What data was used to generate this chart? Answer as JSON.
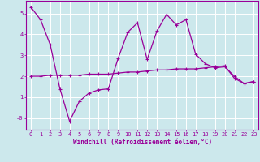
{
  "title": "",
  "xlabel": "Windchill (Refroidissement éolien,°C)",
  "background_color": "#cce8ec",
  "grid_color": "#ffffff",
  "line_color": "#990099",
  "x_line1": [
    0,
    1,
    2,
    3,
    4,
    5,
    6,
    7,
    8,
    9,
    10,
    11,
    12,
    13,
    14,
    15,
    16,
    17,
    18,
    19,
    20,
    21,
    22,
    23
  ],
  "y_line1": [
    5.3,
    4.7,
    3.5,
    1.4,
    -0.15,
    0.8,
    1.2,
    1.35,
    1.4,
    2.85,
    4.1,
    4.55,
    2.8,
    4.15,
    4.95,
    4.45,
    4.7,
    3.05,
    2.6,
    2.4,
    2.45,
    2.0,
    1.65,
    1.75
  ],
  "x_line2": [
    0,
    1,
    2,
    3,
    4,
    5,
    6,
    7,
    8,
    9,
    10,
    11,
    12,
    13,
    14,
    15,
    16,
    17,
    18,
    19,
    20,
    21,
    22,
    23
  ],
  "y_line2": [
    2.0,
    2.0,
    2.05,
    2.05,
    2.05,
    2.05,
    2.1,
    2.1,
    2.1,
    2.15,
    2.2,
    2.2,
    2.25,
    2.3,
    2.3,
    2.35,
    2.35,
    2.35,
    2.4,
    2.45,
    2.5,
    1.9,
    1.65,
    1.75
  ],
  "xlim_min": -0.5,
  "xlim_max": 23.5,
  "ylim_min": -0.55,
  "ylim_max": 5.6,
  "yticks": [
    0,
    1,
    2,
    3,
    4,
    5
  ],
  "ytick_labels": [
    "-0",
    "1",
    "2",
    "3",
    "4",
    "5"
  ],
  "xticks": [
    0,
    1,
    2,
    3,
    4,
    5,
    6,
    7,
    8,
    9,
    10,
    11,
    12,
    13,
    14,
    15,
    16,
    17,
    18,
    19,
    20,
    21,
    22,
    23
  ],
  "tick_fontsize": 5.0,
  "xlabel_fontsize": 5.5,
  "marker_size": 3.5,
  "line_width": 0.9
}
